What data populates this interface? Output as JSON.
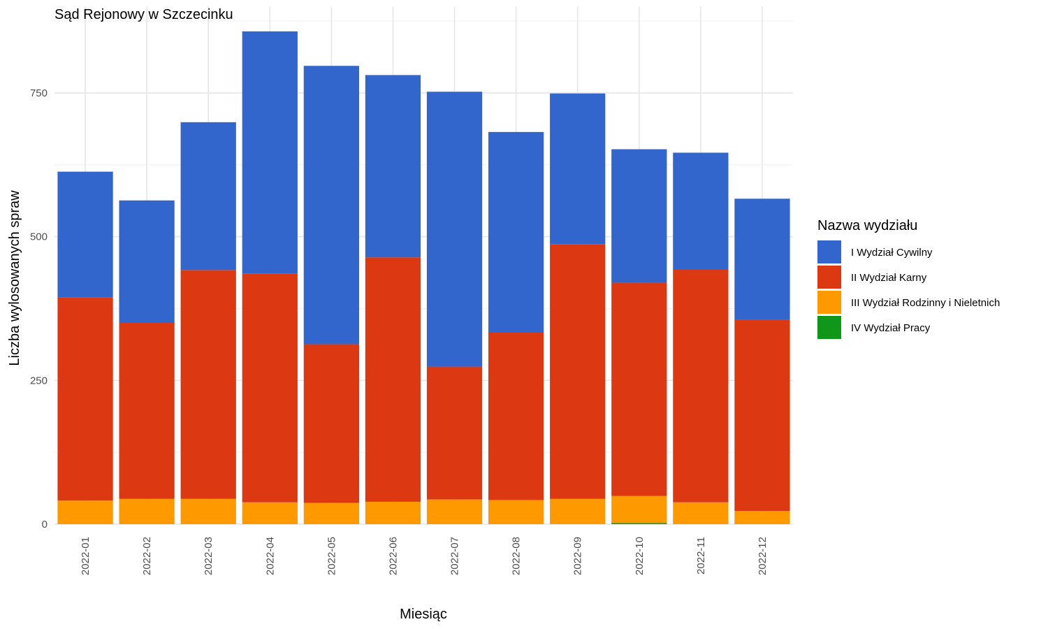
{
  "chart_data": {
    "type": "bar",
    "stacked": true,
    "title": "Sąd Rejonowy w Szczecinku",
    "xlabel": "Miesiąc",
    "ylabel": "Liczba wylosowanych spraw",
    "ylim": [
      0,
      880
    ],
    "yticks": [
      "0",
      "250",
      "500",
      "750"
    ],
    "grid": true,
    "categories": [
      "2022-01",
      "2022-02",
      "2022-03",
      "2022-04",
      "2022-05",
      "2022-06",
      "2022-07",
      "2022-08",
      "2022-09",
      "2022-10",
      "2022-11",
      "2022-12"
    ],
    "legend": {
      "title": "Nazwa wydziału",
      "position": "right"
    },
    "series": [
      {
        "name": "IV Wydział Pracy",
        "color": "#109618",
        "values": [
          0,
          0,
          0,
          0,
          0,
          0,
          0,
          0,
          0,
          2,
          0,
          0
        ]
      },
      {
        "name": "III Wydział Rodzinny i Nieletnich",
        "color": "#FF9900",
        "values": [
          41,
          44,
          44,
          38,
          37,
          39,
          43,
          42,
          44,
          47,
          38,
          23
        ]
      },
      {
        "name": "II Wydział Karny",
        "color": "#DC3912",
        "values": [
          353,
          306,
          398,
          398,
          276,
          425,
          231,
          291,
          443,
          371,
          405,
          332
        ]
      },
      {
        "name": "I Wydział Cywilny",
        "color": "#3366CC",
        "values": [
          219,
          213,
          257,
          421,
          484,
          317,
          478,
          349,
          262,
          232,
          203,
          211
        ]
      }
    ],
    "legend_order": [
      "I Wydział Cywilny",
      "II Wydział Karny",
      "III Wydział Rodzinny i Nieletnich",
      "IV Wydział Pracy"
    ]
  }
}
